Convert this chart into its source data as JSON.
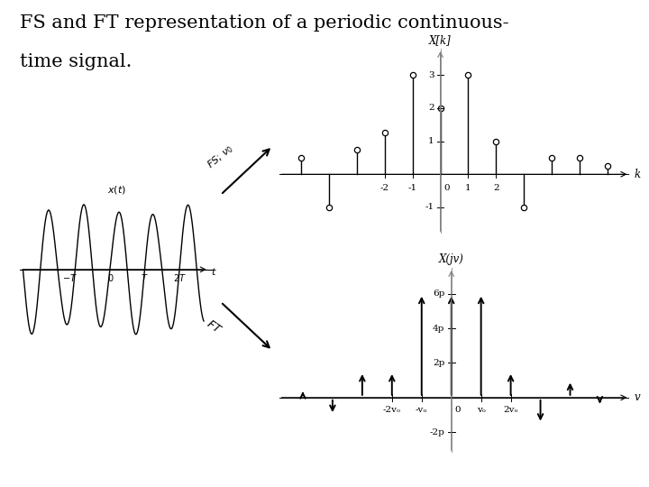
{
  "title_line1": "FS and FT representation of a periodic continuous-",
  "title_line2": "time signal.",
  "title_fontsize": 15,
  "bg_color": "#ffffff",
  "fs_stems": {
    "k_values": [
      -5,
      -4,
      -3,
      -2,
      -1,
      0,
      1,
      2,
      3,
      4,
      5,
      6
    ],
    "amplitudes": [
      0.5,
      -1.0,
      0.75,
      1.25,
      3.0,
      2.0,
      3.0,
      1.0,
      -1.0,
      0.5,
      0.5,
      0.25
    ],
    "ylabel": "X[k]",
    "xlabel": "k",
    "yticks": [
      -1,
      1,
      2,
      3
    ],
    "ytick_labels": [
      "-1",
      "1",
      "2",
      "3"
    ],
    "xticks": [
      -2,
      -1,
      0,
      1,
      2
    ],
    "xtick_labels": [
      "-2",
      "-1",
      "0",
      "1",
      "2"
    ],
    "xlim": [
      -5.8,
      6.8
    ],
    "ylim": [
      -1.8,
      3.8
    ]
  },
  "ft_stems": {
    "v_values": [
      -5,
      -4,
      -3,
      -2,
      -1,
      0,
      1,
      2,
      3,
      4,
      5
    ],
    "amplitudes": [
      0.5,
      -1.0,
      1.5,
      1.5,
      6.0,
      6.0,
      6.0,
      1.5,
      -1.5,
      1.0,
      -0.5
    ],
    "ylabel": "X(jv)",
    "xlabel": "v",
    "yticks": [
      -2,
      2,
      4,
      6
    ],
    "ytick_labels": [
      "-2p",
      "2p",
      "4p",
      "6p"
    ],
    "xtick_labels": [
      "-2vₒ",
      "-vₒ",
      "0",
      "vₒ",
      "2vₒ"
    ],
    "xticks": [
      -2,
      -1,
      0,
      1,
      2
    ],
    "xlim": [
      -5.8,
      6.0
    ],
    "ylim": [
      -3.2,
      7.5
    ]
  }
}
